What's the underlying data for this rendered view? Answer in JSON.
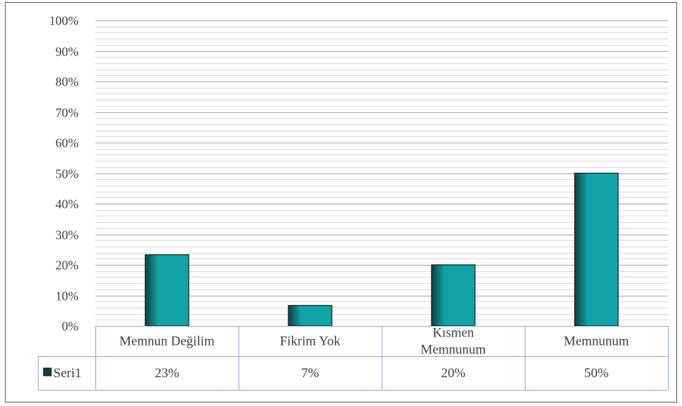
{
  "chart_data": {
    "type": "bar",
    "categories": [
      "Memnun Değilim",
      "Fikrim Yok",
      "Kısmen Memnunum",
      "Memnunum"
    ],
    "category_lines": [
      [
        "Memnun Değilim"
      ],
      [
        "Fikrim Yok"
      ],
      [
        "Kısmen",
        "Memnunum"
      ],
      [
        "Memnunum"
      ]
    ],
    "series": [
      {
        "name": "Seri1",
        "values": [
          23.3,
          6.7,
          20,
          50
        ],
        "labels": [
          "23%",
          "7%",
          "20%",
          "50%"
        ]
      }
    ],
    "ylim": [
      0,
      100
    ],
    "yticks": [
      0,
      10,
      20,
      30,
      40,
      50,
      60,
      70,
      80,
      90,
      100
    ],
    "ytick_labels": [
      "0%",
      "10%",
      "20%",
      "30%",
      "40%",
      "50%",
      "60%",
      "70%",
      "80%",
      "90%",
      "100%"
    ],
    "grid": true,
    "minor_grid": true,
    "data_table": true,
    "legend": "data-table",
    "colors": {
      "bar": "#12A3A6",
      "bar_dark": "#0C3F40",
      "bar_outline": "#1a1a1a",
      "table_border": "#8EAADB",
      "gridline": "#a6a6a6",
      "minor_gridline": "#d9d9d9",
      "text": "#404040",
      "chart_border": "#595959"
    }
  }
}
